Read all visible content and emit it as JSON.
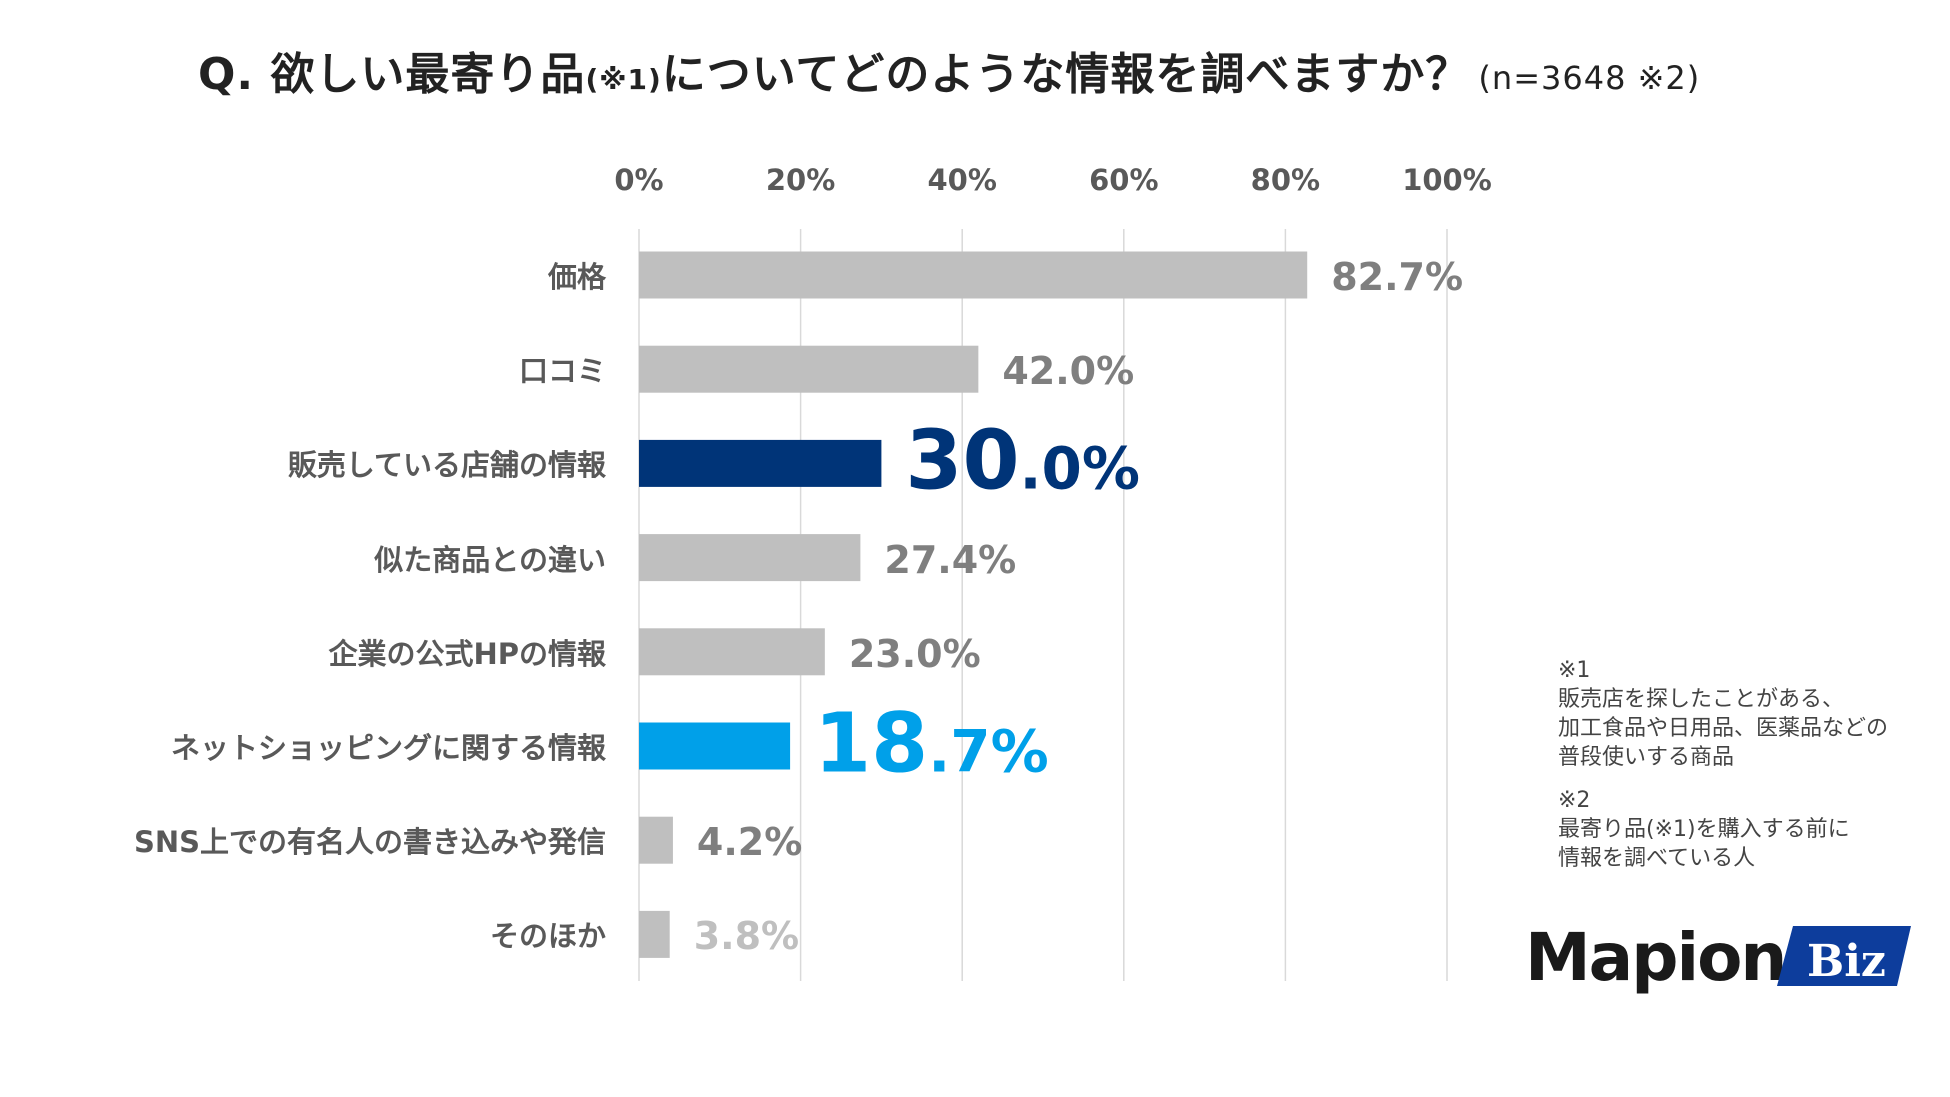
{
  "title": {
    "main": "Q. 欲しい最寄り品",
    "note_ref": "(※1)",
    "rest": "についてどのような情報を調べますか？",
    "sample": "(n=3648 ※2)"
  },
  "chart_data": {
    "type": "bar",
    "orientation": "horizontal",
    "categories": [
      "価格",
      "口コミ",
      "販売している店舗の情報",
      "似た商品との違い",
      "企業の公式HPの情報",
      "ネットショッピングに関する情報",
      "SNS上での有名人の書き込みや発信",
      "そのほか"
    ],
    "values": [
      82.7,
      42.0,
      30.0,
      27.4,
      23.0,
      18.7,
      4.2,
      3.8
    ],
    "value_labels": [
      "82.7%",
      "42.0%",
      "30.0%",
      "27.4%",
      "23.0%",
      "18.7%",
      "4.2%",
      "3.8%"
    ],
    "xlim": [
      0,
      100
    ],
    "ticks": [
      "0%",
      "20%",
      "40%",
      "60%",
      "80%",
      "100%"
    ],
    "tick_values": [
      0,
      20,
      40,
      60,
      80,
      100
    ],
    "tick_position": "top",
    "grid": true,
    "colors": {
      "default": "#bfbfbf",
      "highlight_1": "#003478",
      "highlight_2": "#00a0e9",
      "label_default": "#7f7f7f",
      "label_muted": "#bfbfbf"
    },
    "bar_colors": [
      "#bfbfbf",
      "#bfbfbf",
      "#003478",
      "#bfbfbf",
      "#bfbfbf",
      "#00a0e9",
      "#bfbfbf",
      "#bfbfbf"
    ],
    "label_colors": [
      "#7f7f7f",
      "#7f7f7f",
      "#003478",
      "#7f7f7f",
      "#7f7f7f",
      "#00a0e9",
      "#7f7f7f",
      "#bfbfbf"
    ],
    "emphasized": [
      false,
      false,
      true,
      false,
      false,
      true,
      false,
      false
    ]
  },
  "notes": {
    "n1_mark": "※1",
    "n1_lines": [
      "販売店を探したことがある、",
      "加工食品や日用品、医薬品などの",
      "普段使いする商品"
    ],
    "n2_mark": "※2",
    "n2_lines": [
      "最寄り品(※1)を購入する前に",
      "情報を調べている人"
    ]
  },
  "logo": {
    "text": "Mapion",
    "badge": "Biz",
    "badge_color": "#0d3d9c"
  }
}
